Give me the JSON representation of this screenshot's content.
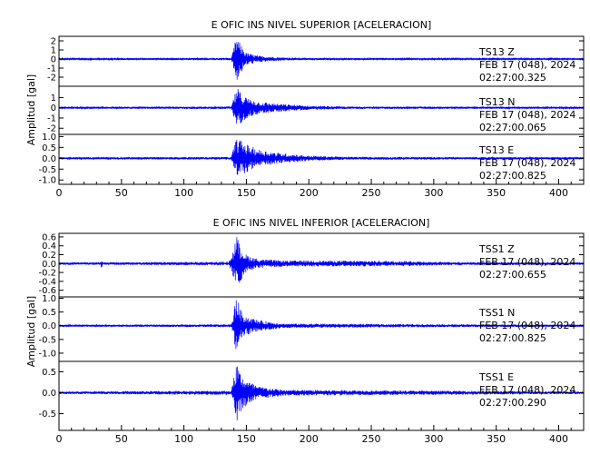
{
  "chart_data": [
    {
      "type": "line",
      "title": "E OFIC INS NIVEL SUPERIOR [ACELERACION]",
      "ylabel": "Amplitud  [gal]",
      "xlim": [
        0,
        420
      ],
      "xticks": [
        0,
        50,
        100,
        150,
        200,
        250,
        300,
        350,
        400
      ],
      "line_color": "#0000ff",
      "panels": [
        {
          "station": "TS13",
          "component": "Z",
          "date": "FEB 17 (048), 2024",
          "time": "02:27:00.325",
          "ylim": [
            -3,
            2.5
          ],
          "yticks": [
            2,
            1,
            0,
            -1,
            -2
          ],
          "yticklabels": [
            "2",
            "1",
            "0",
            "-1",
            "-2"
          ],
          "envelope": [
            [
              0,
              0.08
            ],
            [
              138,
              0.12
            ],
            [
              140,
              1.3
            ],
            [
              142,
              2.5
            ],
            [
              145,
              1.7
            ],
            [
              150,
              0.7
            ],
            [
              160,
              0.35
            ],
            [
              180,
              0.18
            ],
            [
              210,
              0.1
            ],
            [
              420,
              0.07
            ]
          ]
        },
        {
          "station": "TS13",
          "component": "N",
          "date": "FEB 17 (048), 2024",
          "time": "02:27:00.065",
          "ylim": [
            -2.6,
            2.1
          ],
          "yticks": [
            1,
            0,
            -1,
            -2
          ],
          "yticklabels": [
            "1",
            "0",
            "-1",
            "-2"
          ],
          "envelope": [
            [
              0,
              0.08
            ],
            [
              138,
              0.12
            ],
            [
              140,
              1.1
            ],
            [
              143,
              1.9
            ],
            [
              147,
              1.3
            ],
            [
              152,
              0.9
            ],
            [
              160,
              0.6
            ],
            [
              175,
              0.4
            ],
            [
              200,
              0.2
            ],
            [
              230,
              0.12
            ],
            [
              420,
              0.07
            ]
          ]
        },
        {
          "station": "TS13",
          "component": "E",
          "date": "FEB 17 (048), 2024",
          "time": "02:27:00.825",
          "ylim": [
            -1.2,
            1.1
          ],
          "yticks": [
            1.0,
            0.5,
            0.0,
            -0.5,
            -1.0
          ],
          "yticklabels": [
            "1.0",
            "0.5",
            "0.0",
            "-0.5",
            "-1.0"
          ],
          "envelope": [
            [
              0,
              0.04
            ],
            [
              138,
              0.06
            ],
            [
              140,
              0.6
            ],
            [
              143,
              1.0
            ],
            [
              147,
              0.75
            ],
            [
              152,
              0.6
            ],
            [
              160,
              0.4
            ],
            [
              175,
              0.25
            ],
            [
              200,
              0.12
            ],
            [
              230,
              0.07
            ],
            [
              420,
              0.04
            ]
          ]
        }
      ]
    },
    {
      "type": "line",
      "title": "E OFIC INS NIVEL INFERIOR [ACELERACION]",
      "ylabel": "Amplitud  [gal]",
      "xlim": [
        0,
        420
      ],
      "xticks": [
        0,
        50,
        100,
        150,
        200,
        250,
        300,
        350,
        400
      ],
      "line_color": "#0000ff",
      "panels": [
        {
          "station": "TSS1",
          "component": "Z",
          "date": "FEB 17 (048), 2024",
          "time": "02:27:00.655",
          "ylim": [
            -0.75,
            0.68
          ],
          "yticks": [
            0.6,
            0.4,
            0.2,
            0.0,
            -0.2,
            -0.4,
            -0.6
          ],
          "yticklabels": [
            "0.6",
            "0.4",
            "0.2",
            "0.0",
            "-0.2",
            "-0.4",
            "-0.6"
          ],
          "envelope": [
            [
              0,
              0.03
            ],
            [
              33,
              0.03
            ],
            [
              34,
              0.1
            ],
            [
              35,
              0.03
            ],
            [
              136,
              0.04
            ],
            [
              140,
              0.35
            ],
            [
              142,
              0.65
            ],
            [
              145,
              0.4
            ],
            [
              150,
              0.2
            ],
            [
              160,
              0.1
            ],
            [
              180,
              0.07
            ],
            [
              280,
              0.06
            ],
            [
              300,
              0.04
            ],
            [
              420,
              0.025
            ]
          ]
        },
        {
          "station": "TSS1",
          "component": "N",
          "date": "FEB 17 (048), 2024",
          "time": "02:27:00.825",
          "ylim": [
            -1.3,
            1.05
          ],
          "yticks": [
            1.0,
            0.5,
            0.0,
            -0.5,
            -1.0
          ],
          "yticklabels": [
            "1.0",
            "0.5",
            "0.0",
            "-0.5",
            "-1.0"
          ],
          "envelope": [
            [
              0,
              0.03
            ],
            [
              138,
              0.05
            ],
            [
              140,
              0.6
            ],
            [
              142,
              1.2
            ],
            [
              145,
              0.6
            ],
            [
              150,
              0.35
            ],
            [
              160,
              0.2
            ],
            [
              180,
              0.08
            ],
            [
              420,
              0.03
            ]
          ]
        },
        {
          "station": "TSS1",
          "component": "E",
          "date": "FEB 17 (048), 2024",
          "time": "02:27:00.290",
          "ylim": [
            -0.9,
            0.75
          ],
          "yticks": [
            0.5,
            0.0,
            -0.5
          ],
          "yticklabels": [
            "0.5",
            "0.0",
            "-0.5"
          ],
          "envelope": [
            [
              0,
              0.03
            ],
            [
              138,
              0.05
            ],
            [
              140,
              0.4
            ],
            [
              142,
              0.75
            ],
            [
              145,
              0.5
            ],
            [
              150,
              0.3
            ],
            [
              160,
              0.15
            ],
            [
              180,
              0.07
            ],
            [
              420,
              0.03
            ]
          ]
        }
      ]
    }
  ]
}
